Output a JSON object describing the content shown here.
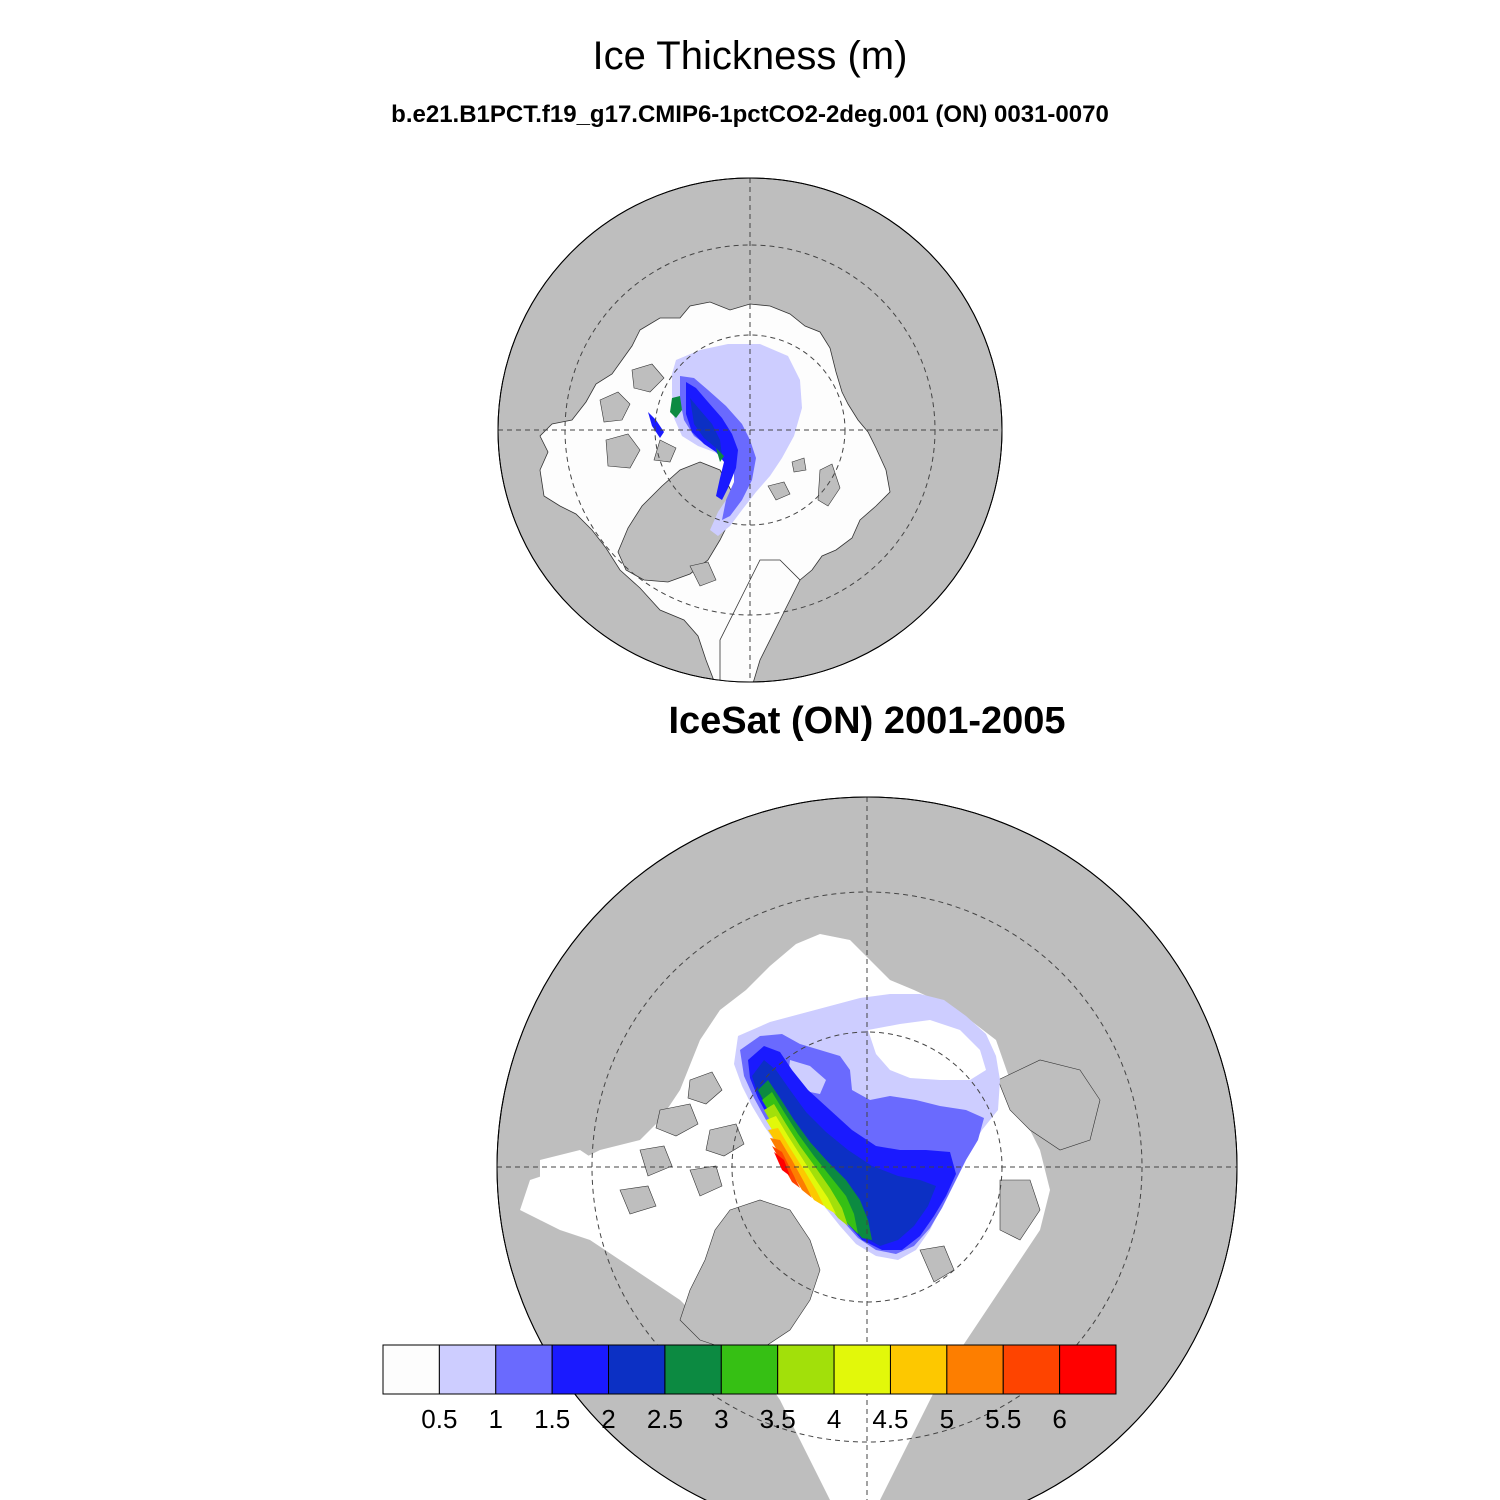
{
  "figure": {
    "title": "Ice Thickness (m)",
    "model_subtitle": "b.e21.B1PCT.f19_g17.CMIP6-1pctCO2-2deg.001 (ON) 0031-0070",
    "obs_title": "IceSat (ON) 2001-2005"
  },
  "colorbar": {
    "colors": [
      "#fdfdfd",
      "#cdcdff",
      "#6a6afe",
      "#1a1aff",
      "#0c30c4",
      "#0c8a41",
      "#36c014",
      "#a2e00a",
      "#e2f80a",
      "#fdc800",
      "#fd7e00",
      "#fe4400",
      "#ff0000"
    ],
    "labels": [
      "0.5",
      "1",
      "1.5",
      "2",
      "2.5",
      "3",
      "3.5",
      "4",
      "4.5",
      "5",
      "5.5",
      "6"
    ]
  },
  "colors": {
    "land": "#bebebe",
    "ocean": "#fdfdfd",
    "grid": "#444444"
  }
}
